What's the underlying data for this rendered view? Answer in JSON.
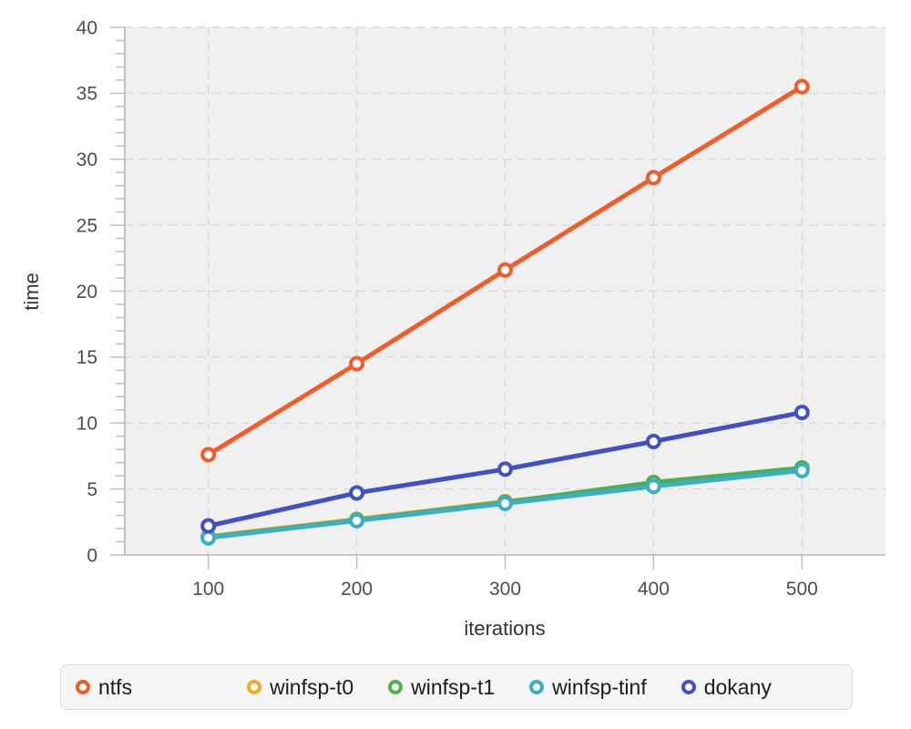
{
  "chart_data": {
    "type": "line",
    "title": "",
    "xlabel": "iterations",
    "ylabel": "time",
    "x": [
      100,
      200,
      300,
      400,
      500
    ],
    "xticks": [
      100,
      200,
      300,
      400,
      500
    ],
    "ylim": [
      0,
      40
    ],
    "ytick_step": 5,
    "ytick_minor_step": 1,
    "grid": "dashed",
    "legend_position": "bottom",
    "series": [
      {
        "name": "ntfs",
        "color": "#F25C2A",
        "values": [
          7.6,
          14.5,
          21.6,
          28.6,
          35.5
        ]
      },
      {
        "name": "winfsp-t0",
        "color": "#F5A91F",
        "values": [
          1.4,
          2.7,
          4.05,
          5.25,
          6.5
        ]
      },
      {
        "name": "winfsp-t1",
        "color": "#4CAF50",
        "values": [
          1.35,
          2.65,
          4.0,
          5.5,
          6.6
        ]
      },
      {
        "name": "winfsp-tinf",
        "color": "#3BAFC4",
        "values": [
          1.3,
          2.6,
          3.9,
          5.2,
          6.4
        ]
      },
      {
        "name": "dokany",
        "color": "#4150C2",
        "values": [
          2.2,
          4.7,
          6.5,
          8.6,
          10.8
        ]
      }
    ]
  },
  "style": {
    "plot_bg": "#F0F0F0",
    "grid_color": "#D9D9D9",
    "axis_color": "#B5B5B5",
    "tick_color": "#C2C2C2",
    "tick_label_color": "#4D4D4D",
    "axis_title_color": "#333333",
    "marker_fill": "#FFFFFF",
    "legend_bg": "#F5F5F5",
    "legend_border": "#DBDBDB",
    "legend_text": "#1B1B1B"
  }
}
